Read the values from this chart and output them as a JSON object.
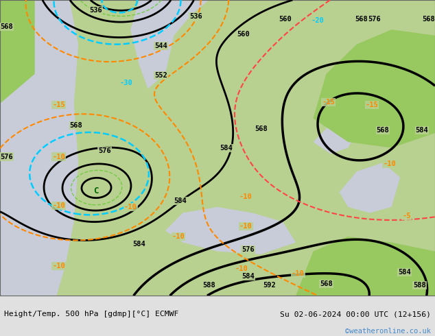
{
  "title_left": "Height/Temp. 500 hPa [gdmp][°C] ECMWF",
  "title_right": "Su 02-06-2024 00:00 UTC (12+156)",
  "watermark": "©weatheronline.co.uk",
  "bottom_bar_color": "#e0e0e0",
  "title_color": "#000000",
  "watermark_color": "#4488cc",
  "figsize": [
    6.34,
    4.9
  ],
  "dpi": 100
}
